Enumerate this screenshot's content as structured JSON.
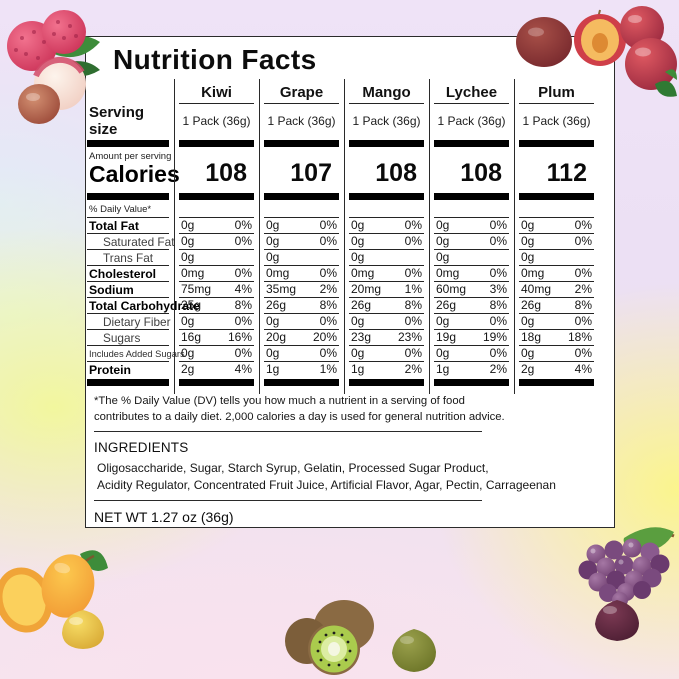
{
  "title": "Nutrition Facts",
  "table": {
    "columns": [
      "Kiwi",
      "Grape",
      "Mango",
      "Lychee",
      "Plum"
    ],
    "serving_size_label": "Serving size",
    "serving_sizes": [
      "1 Pack (36g)",
      "1 Pack (36g)",
      "1 Pack (36g)",
      "1 Pack (36g)",
      "1 Pack (36g)"
    ],
    "amount_per_serving_label": "Amount per serving",
    "calories_label": "Calories",
    "calories": [
      "108",
      "107",
      "108",
      "108",
      "112"
    ],
    "daily_value_label": "% Daily Value*",
    "rows": [
      {
        "label": "Total Fat",
        "style": "bold",
        "values": [
          [
            "0g",
            "0%"
          ],
          [
            "0g",
            "0%"
          ],
          [
            "0g",
            "0%"
          ],
          [
            "0g",
            "0%"
          ],
          [
            "0g",
            "0%"
          ]
        ]
      },
      {
        "label": "Saturated Fat",
        "style": "indent",
        "values": [
          [
            "0g",
            "0%"
          ],
          [
            "0g",
            "0%"
          ],
          [
            "0g",
            "0%"
          ],
          [
            "0g",
            "0%"
          ],
          [
            "0g",
            "0%"
          ]
        ]
      },
      {
        "label": "Trans Fat",
        "style": "indent",
        "values": [
          [
            "0g",
            ""
          ],
          [
            "0g",
            ""
          ],
          [
            "0g",
            ""
          ],
          [
            "0g",
            ""
          ],
          [
            "0g",
            ""
          ]
        ]
      },
      {
        "label": "Cholesterol",
        "style": "bold",
        "values": [
          [
            "0mg",
            "0%"
          ],
          [
            "0mg",
            "0%"
          ],
          [
            "0mg",
            "0%"
          ],
          [
            "0mg",
            "0%"
          ],
          [
            "0mg",
            "0%"
          ]
        ]
      },
      {
        "label": "Sodium",
        "style": "bold",
        "values": [
          [
            "75mg",
            "4%"
          ],
          [
            "35mg",
            "2%"
          ],
          [
            "20mg",
            "1%"
          ],
          [
            "60mg",
            "3%"
          ],
          [
            "40mg",
            "2%"
          ]
        ]
      },
      {
        "label": "Total Carbohydrate",
        "style": "bold",
        "values": [
          [
            "25g",
            "8%"
          ],
          [
            "26g",
            "8%"
          ],
          [
            "26g",
            "8%"
          ],
          [
            "26g",
            "8%"
          ],
          [
            "26g",
            "8%"
          ]
        ]
      },
      {
        "label": "Dietary Fiber",
        "style": "indent",
        "values": [
          [
            "0g",
            "0%"
          ],
          [
            "0g",
            "0%"
          ],
          [
            "0g",
            "0%"
          ],
          [
            "0g",
            "0%"
          ],
          [
            "0g",
            "0%"
          ]
        ]
      },
      {
        "label": "Sugars",
        "style": "indent",
        "values": [
          [
            "16g",
            "16%"
          ],
          [
            "20g",
            "20%"
          ],
          [
            "23g",
            "23%"
          ],
          [
            "19g",
            "19%"
          ],
          [
            "18g",
            "18%"
          ]
        ]
      },
      {
        "label": "Includes  Added Sugars",
        "style": "small",
        "values": [
          [
            "0g",
            "0%"
          ],
          [
            "0g",
            "0%"
          ],
          [
            "0g",
            "0%"
          ],
          [
            "0g",
            "0%"
          ],
          [
            "0g",
            "0%"
          ]
        ]
      },
      {
        "label": "Protein",
        "style": "bold last",
        "values": [
          [
            "2g",
            "4%"
          ],
          [
            "1g",
            "1%"
          ],
          [
            "1g",
            "2%"
          ],
          [
            "1g",
            "2%"
          ],
          [
            "2g",
            "4%"
          ]
        ]
      }
    ]
  },
  "footnote_lines": [
    "*The % Daily Value (DV) tells you how much a nutrient in a serving of food",
    "contributes to a daily diet. 2,000 calories a day is used for general nutrition advice."
  ],
  "ingredients": {
    "label": "INGREDIENTS",
    "lines": [
      "Oligosaccharide, Sugar, Starch Syrup, Gelatin, Processed Sugar Product,",
      "Acidity Regulator, Concentrated Fruit Juice, Artificial Flavor, Agar, Pectin, Carrageenan"
    ]
  },
  "net_weight": "NET WT 1.27 oz (36g)",
  "decor": {
    "fruit_images": [
      "lychee",
      "plum",
      "mango",
      "kiwi",
      "grape"
    ],
    "gummy_images": [
      "lychee-gummy",
      "plum-gummy",
      "mango-gummy",
      "kiwi-gummy",
      "grape-gummy"
    ]
  },
  "colors": {
    "card_bg": "#ffffff",
    "card_border": "#2b2b2b",
    "divider": "#000000",
    "bg_lavender": "#efe3f7",
    "bg_yellow": "#fbf58d",
    "bg_pink": "#f9e2ee",
    "bg_blue": "#e2ecf6",
    "bg_mint": "#e7f4e2"
  }
}
